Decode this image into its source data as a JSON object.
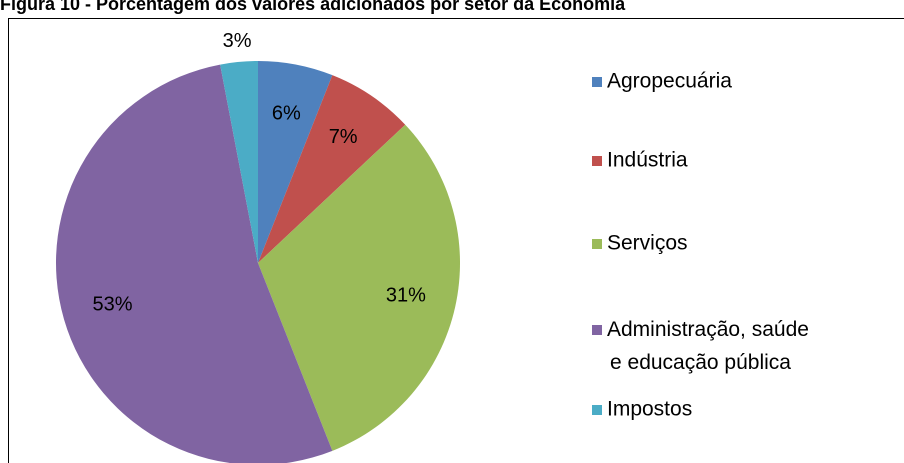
{
  "chart_data": {
    "type": "pie",
    "title": "Figura 10 - Porcentagem dos valores adicionados por setor da Economia",
    "categories": [
      "Agropecuária",
      "Indústria",
      "Serviços",
      "Administração, saúde e educação pública",
      "Impostos"
    ],
    "values": [
      6,
      7,
      31,
      53,
      3
    ],
    "value_labels": [
      "6%",
      "7%",
      "31%",
      "53%",
      "3%"
    ],
    "colors": [
      "#4f81bd",
      "#c0504d",
      "#9bbb59",
      "#8064a2",
      "#4bacc6"
    ],
    "legend": "right"
  }
}
